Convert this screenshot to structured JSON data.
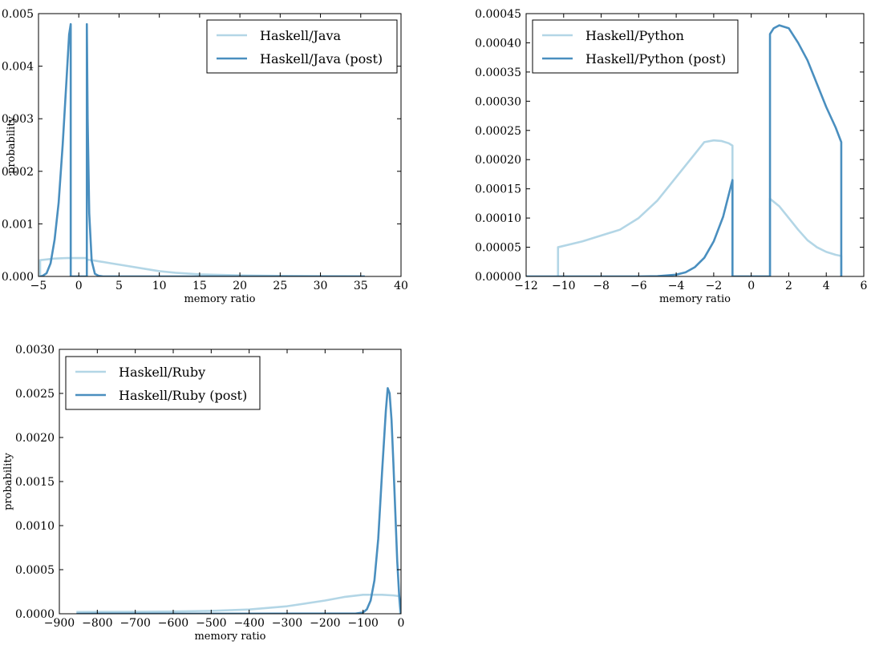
{
  "colors": {
    "prior": "#b3d6e6",
    "post": "#4a8fbf",
    "frame": "#000000",
    "background": "#ffffff"
  },
  "chart_data": [
    {
      "type": "line",
      "xlabel": "memory ratio",
      "ylabel": "probability",
      "xlim": [
        -5,
        40
      ],
      "ylim": [
        0,
        0.005
      ],
      "xticks": [
        -5,
        0,
        5,
        10,
        15,
        20,
        25,
        30,
        35,
        40
      ],
      "xtick_labels": [
        "−5",
        "0",
        "5",
        "10",
        "15",
        "20",
        "25",
        "30",
        "35",
        "40"
      ],
      "yticks": [
        0,
        0.001,
        0.002,
        0.003,
        0.004,
        0.005
      ],
      "ytick_labels": [
        "0.000",
        "0.001",
        "0.002",
        "0.003",
        "0.004",
        "0.005"
      ],
      "legend_position": "upper right",
      "series": [
        {
          "name": "Haskell/Java",
          "style": "prior",
          "x": [
            -4.8,
            -4.8,
            -3,
            -1.5,
            0,
            1,
            1,
            2,
            4,
            6,
            8,
            10,
            12,
            15,
            20,
            25,
            30,
            35.5
          ],
          "y": [
            0,
            0.00031,
            0.00034,
            0.00035,
            0.00035,
            0.00035,
            0.00032,
            0.0003,
            0.00025,
            0.0002,
            0.00015,
            0.0001,
            7e-05,
            4e-05,
            2e-05,
            1e-05,
            5e-06,
            2e-06
          ]
        },
        {
          "name": "Haskell/Java (post)",
          "style": "post",
          "x": [
            -4.8,
            -4.5,
            -4,
            -3.5,
            -3,
            -2.5,
            -2,
            -1.5,
            -1.2,
            -1,
            -1,
            1,
            1,
            1.1,
            1.3,
            1.6,
            2.0,
            2.5,
            3,
            35.5
          ],
          "y": [
            0,
            1e-05,
            6e-05,
            0.00025,
            0.0007,
            0.0014,
            0.0025,
            0.0038,
            0.0046,
            0.0048,
            0,
            0,
            0.0048,
            0.003,
            0.0012,
            0.0003,
            5e-05,
            1e-05,
            0,
            0
          ]
        }
      ]
    },
    {
      "type": "line",
      "xlabel": "memory ratio",
      "ylabel": "",
      "xlim": [
        -12,
        6
      ],
      "ylim": [
        0,
        0.00045
      ],
      "xticks": [
        -12,
        -10,
        -8,
        -6,
        -4,
        -2,
        0,
        2,
        4,
        6
      ],
      "xtick_labels": [
        "−12",
        "−10",
        "−8",
        "−6",
        "−4",
        "−2",
        "0",
        "2",
        "4",
        "6"
      ],
      "yticks": [
        0,
        5e-05,
        0.0001,
        0.00015,
        0.0002,
        0.00025,
        0.0003,
        0.00035,
        0.0004,
        0.00045
      ],
      "ytick_labels": [
        "0.00000",
        "0.00005",
        "0.00010",
        "0.00015",
        "0.00020",
        "0.00025",
        "0.00030",
        "0.00035",
        "0.00040",
        "0.00045"
      ],
      "legend_position": "upper left",
      "series": [
        {
          "name": "Haskell/Python",
          "style": "prior",
          "x": [
            -10.3,
            -10.3,
            -9,
            -7,
            -6,
            -5,
            -4,
            -3,
            -2.5,
            -2,
            -1.6,
            -1.2,
            -1,
            -1,
            1,
            1,
            1.5,
            2,
            2.5,
            3,
            3.5,
            4,
            4.5,
            4.8,
            4.8
          ],
          "y": [
            0,
            5e-05,
            6e-05,
            8e-05,
            0.0001,
            0.00013,
            0.00017,
            0.00021,
            0.00023,
            0.000233,
            0.000232,
            0.000228,
            0.000224,
            0,
            0,
            0.000133,
            0.00012,
            0.0001,
            8e-05,
            6.2e-05,
            5e-05,
            4.2e-05,
            3.7e-05,
            3.5e-05,
            0
          ]
        },
        {
          "name": "Haskell/Python (post)",
          "style": "post",
          "x": [
            -12,
            -6,
            -5,
            -4,
            -3.5,
            -3,
            -2.5,
            -2,
            -1.5,
            -1,
            -1,
            1,
            1,
            1.2,
            1.5,
            2,
            2.5,
            3,
            3.5,
            4,
            4.5,
            4.8,
            4.8
          ],
          "y": [
            0,
            0,
            5e-07,
            3e-06,
            7e-06,
            1.6e-05,
            3.2e-05,
            6e-05,
            0.000102,
            0.000165,
            0,
            0,
            0.000415,
            0.000425,
            0.00043,
            0.000425,
            0.0004,
            0.00037,
            0.00033,
            0.00029,
            0.000255,
            0.00023,
            0
          ]
        }
      ]
    },
    {
      "type": "line",
      "xlabel": "memory ratio",
      "ylabel": "probability",
      "xlim": [
        -900,
        0
      ],
      "ylim": [
        0,
        0.003
      ],
      "xticks": [
        -900,
        -800,
        -700,
        -600,
        -500,
        -400,
        -300,
        -200,
        -100,
        0
      ],
      "xtick_labels": [
        "−900",
        "−800",
        "−700",
        "−600",
        "−500",
        "−400",
        "−300",
        "−200",
        "−100",
        "0"
      ],
      "yticks": [
        0,
        0.0005,
        0.001,
        0.0015,
        0.002,
        0.0025,
        0.003
      ],
      "ytick_labels": [
        "0.0000",
        "0.0005",
        "0.0010",
        "0.0015",
        "0.0020",
        "0.0025",
        "0.0030"
      ],
      "legend_position": "upper left",
      "series": [
        {
          "name": "Haskell/Ruby",
          "style": "prior",
          "x": [
            -855,
            -700,
            -600,
            -500,
            -400,
            -300,
            -200,
            -150,
            -100,
            -50,
            -20,
            -5,
            -2
          ],
          "y": [
            2e-05,
            2.2e-05,
            2.6e-05,
            3.3e-05,
            4.8e-05,
            8.5e-05,
            0.00015,
            0.00019,
            0.000215,
            0.000215,
            0.000208,
            0.0002,
            0
          ]
        },
        {
          "name": "Haskell/Ruby (post)",
          "style": "post",
          "x": [
            -855,
            -120,
            -100,
            -90,
            -80,
            -70,
            -60,
            -50,
            -40,
            -35,
            -30,
            -25,
            -20,
            -15,
            -10,
            -5,
            -2,
            0
          ],
          "y": [
            0,
            2e-06,
            1.5e-05,
            5e-05,
            0.00015,
            0.00038,
            0.00085,
            0.0016,
            0.0023,
            0.00256,
            0.0025,
            0.0022,
            0.0017,
            0.00115,
            0.0006,
            0.00022,
            8e-05,
            0
          ]
        }
      ]
    }
  ]
}
